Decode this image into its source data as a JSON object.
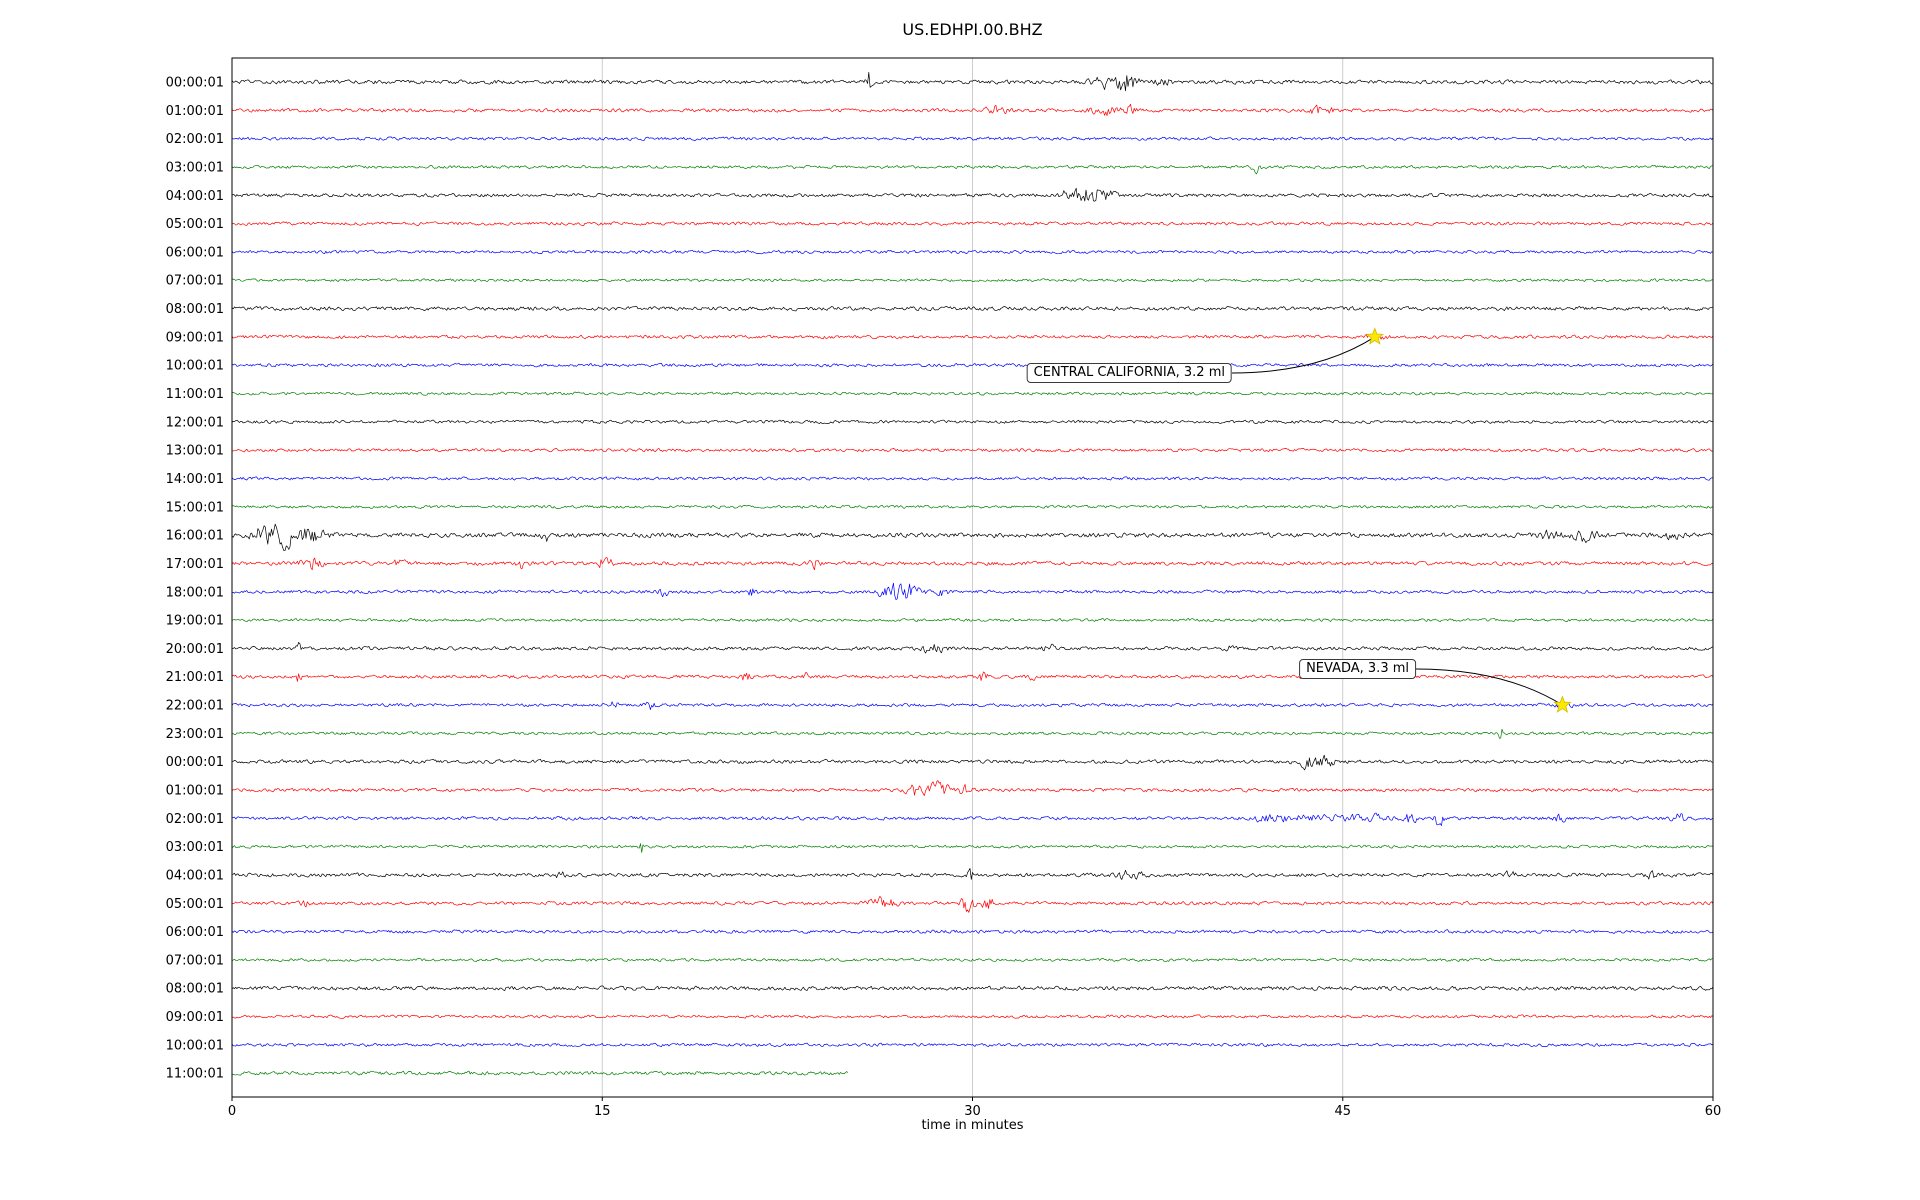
{
  "chart_data": {
    "type": "line",
    "variant": "seismogram-dayplot",
    "title": "US.EDHPI.00.BHZ",
    "xlabel": "time in minutes",
    "x_ticks": [
      0,
      15,
      30,
      45,
      60
    ],
    "x_tick_labels": [
      "0",
      "15",
      "30",
      "45",
      "60"
    ],
    "x_range": [
      0,
      60
    ],
    "grid": true,
    "trace_color_cycle": [
      "#000000",
      "#ff0000",
      "#0000ff",
      "#008000"
    ],
    "rows": [
      {
        "label": "00:00:01",
        "color": "#000000",
        "base": 2.5,
        "bursts": [
          {
            "m": 25.8,
            "w": 0.08,
            "a": 16
          },
          {
            "m": 35.6,
            "w": 0.5,
            "a": 8
          },
          {
            "m": 36.3,
            "w": 0.25,
            "a": 9
          },
          {
            "m": 37.7,
            "w": 0.2,
            "a": 6
          }
        ]
      },
      {
        "label": "01:00:01",
        "color": "#ff0000",
        "base": 2.2,
        "bursts": [
          {
            "m": 30.9,
            "w": 0.3,
            "a": 6
          },
          {
            "m": 35.4,
            "w": 0.4,
            "a": 6
          },
          {
            "m": 36.4,
            "w": 0.12,
            "a": 10
          },
          {
            "m": 43.9,
            "w": 0.15,
            "a": 7
          },
          {
            "m": 44.5,
            "w": 0.1,
            "a": 4
          }
        ]
      },
      {
        "label": "02:00:01",
        "color": "#0000ff",
        "base": 2.1,
        "bursts": []
      },
      {
        "label": "03:00:01",
        "color": "#008000",
        "base": 2.0,
        "bursts": [
          {
            "m": 41.5,
            "w": 0.1,
            "a": 11
          }
        ]
      },
      {
        "label": "04:00:01",
        "color": "#000000",
        "base": 2.3,
        "bursts": [
          {
            "m": 34.0,
            "w": 0.25,
            "a": 10
          },
          {
            "m": 34.8,
            "w": 0.3,
            "a": 14
          },
          {
            "m": 35.6,
            "w": 0.2,
            "a": 6
          }
        ]
      },
      {
        "label": "05:00:01",
        "color": "#ff0000",
        "base": 2.1,
        "bursts": []
      },
      {
        "label": "06:00:01",
        "color": "#0000ff",
        "base": 2.0,
        "bursts": []
      },
      {
        "label": "07:00:01",
        "color": "#008000",
        "base": 1.8,
        "bursts": []
      },
      {
        "label": "08:00:01",
        "color": "#000000",
        "base": 2.6,
        "bursts": []
      },
      {
        "label": "09:00:01",
        "color": "#ff0000",
        "base": 2.2,
        "bursts": [
          {
            "m": 46.3,
            "w": 0.3,
            "a": 3
          }
        ]
      },
      {
        "label": "10:00:01",
        "color": "#0000ff",
        "base": 2.1,
        "bursts": []
      },
      {
        "label": "11:00:01",
        "color": "#008000",
        "base": 1.9,
        "bursts": []
      },
      {
        "label": "12:00:01",
        "color": "#000000",
        "base": 2.0,
        "bursts": []
      },
      {
        "label": "13:00:01",
        "color": "#ff0000",
        "base": 2.0,
        "bursts": []
      },
      {
        "label": "14:00:01",
        "color": "#0000ff",
        "base": 2.0,
        "bursts": []
      },
      {
        "label": "15:00:01",
        "color": "#008000",
        "base": 1.9,
        "bursts": []
      },
      {
        "label": "16:00:01",
        "color": "#000000",
        "base": 3.0,
        "bursts": [
          {
            "m": 1.2,
            "w": 0.3,
            "a": 8
          },
          {
            "m": 2.1,
            "w": 0.5,
            "a": 14
          },
          {
            "m": 3.3,
            "w": 0.4,
            "a": 7
          },
          {
            "m": 12.7,
            "w": 0.08,
            "a": 8
          },
          {
            "m": 53.4,
            "w": 0.3,
            "a": 6
          },
          {
            "m": 54.8,
            "w": 0.35,
            "a": 7
          },
          {
            "m": 58.3,
            "w": 0.25,
            "a": 6
          }
        ]
      },
      {
        "label": "17:00:01",
        "color": "#ff0000",
        "base": 2.5,
        "bursts": [
          {
            "m": 3.2,
            "w": 0.3,
            "a": 7
          },
          {
            "m": 6.8,
            "w": 0.15,
            "a": 5
          },
          {
            "m": 11.7,
            "w": 0.15,
            "a": 6
          },
          {
            "m": 15.1,
            "w": 0.2,
            "a": 8
          },
          {
            "m": 23.6,
            "w": 0.15,
            "a": 6
          }
        ]
      },
      {
        "label": "18:00:01",
        "color": "#0000ff",
        "base": 2.2,
        "bursts": [
          {
            "m": 17.5,
            "w": 0.15,
            "a": 5
          },
          {
            "m": 21.1,
            "w": 0.12,
            "a": 6
          },
          {
            "m": 26.6,
            "w": 0.3,
            "a": 9
          },
          {
            "m": 27.4,
            "w": 0.35,
            "a": 10
          },
          {
            "m": 28.8,
            "w": 0.15,
            "a": 5
          }
        ]
      },
      {
        "label": "19:00:01",
        "color": "#008000",
        "base": 1.9,
        "bursts": []
      },
      {
        "label": "20:00:01",
        "color": "#000000",
        "base": 2.3,
        "bursts": [
          {
            "m": 2.7,
            "w": 0.06,
            "a": 10
          },
          {
            "m": 28.4,
            "w": 0.3,
            "a": 7
          },
          {
            "m": 33.1,
            "w": 0.15,
            "a": 5
          },
          {
            "m": 40.5,
            "w": 0.12,
            "a": 5
          }
        ]
      },
      {
        "label": "21:00:01",
        "color": "#ff0000",
        "base": 2.2,
        "bursts": [
          {
            "m": 2.7,
            "w": 0.05,
            "a": 17
          },
          {
            "m": 20.8,
            "w": 0.15,
            "a": 5
          },
          {
            "m": 23.3,
            "w": 0.12,
            "a": 4
          },
          {
            "m": 30.4,
            "w": 0.15,
            "a": 6
          },
          {
            "m": 32.4,
            "w": 0.12,
            "a": 5
          }
        ]
      },
      {
        "label": "22:00:01",
        "color": "#0000ff",
        "base": 2.1,
        "bursts": [
          {
            "m": 15.5,
            "w": 0.1,
            "a": 6
          },
          {
            "m": 16.9,
            "w": 0.12,
            "a": 7
          },
          {
            "m": 53.9,
            "w": 0.25,
            "a": 3
          }
        ]
      },
      {
        "label": "23:00:01",
        "color": "#008000",
        "base": 1.9,
        "bursts": [
          {
            "m": 51.4,
            "w": 0.06,
            "a": 10
          }
        ]
      },
      {
        "label": "00:00:01",
        "color": "#000000",
        "base": 2.4,
        "bursts": [
          {
            "m": 43.5,
            "w": 0.3,
            "a": 7
          },
          {
            "m": 44.3,
            "w": 0.25,
            "a": 8
          }
        ]
      },
      {
        "label": "01:00:01",
        "color": "#ff0000",
        "base": 2.2,
        "bursts": [
          {
            "m": 27.7,
            "w": 0.25,
            "a": 8
          },
          {
            "m": 28.6,
            "w": 0.3,
            "a": 10
          },
          {
            "m": 29.6,
            "w": 0.2,
            "a": 7
          }
        ]
      },
      {
        "label": "02:00:01",
        "color": "#0000ff",
        "base": 2.2,
        "bursts": [
          {
            "m": 42.0,
            "w": 0.6,
            "a": 4
          },
          {
            "m": 44.0,
            "w": 0.8,
            "a": 4
          },
          {
            "m": 46.0,
            "w": 0.5,
            "a": 5
          },
          {
            "m": 47.7,
            "w": 0.2,
            "a": 7
          },
          {
            "m": 48.9,
            "w": 0.1,
            "a": 14
          },
          {
            "m": 53.8,
            "w": 0.15,
            "a": 6
          },
          {
            "m": 58.6,
            "w": 0.2,
            "a": 6
          }
        ]
      },
      {
        "label": "03:00:01",
        "color": "#008000",
        "base": 1.9,
        "bursts": [
          {
            "m": 16.6,
            "w": 0.08,
            "a": 9
          }
        ]
      },
      {
        "label": "04:00:01",
        "color": "#000000",
        "base": 2.4,
        "bursts": [
          {
            "m": 13.3,
            "w": 0.1,
            "a": 6
          },
          {
            "m": 29.9,
            "w": 0.07,
            "a": 15
          },
          {
            "m": 36.3,
            "w": 0.4,
            "a": 5
          },
          {
            "m": 51.8,
            "w": 0.15,
            "a": 5
          },
          {
            "m": 57.5,
            "w": 0.15,
            "a": 5
          }
        ]
      },
      {
        "label": "05:00:01",
        "color": "#ff0000",
        "base": 2.2,
        "bursts": [
          {
            "m": 2.9,
            "w": 0.12,
            "a": 5
          },
          {
            "m": 26.3,
            "w": 0.4,
            "a": 7
          },
          {
            "m": 29.8,
            "w": 0.15,
            "a": 16
          },
          {
            "m": 30.6,
            "w": 0.2,
            "a": 7
          }
        ]
      },
      {
        "label": "06:00:01",
        "color": "#0000ff",
        "base": 2.1,
        "bursts": []
      },
      {
        "label": "07:00:01",
        "color": "#008000",
        "base": 1.9,
        "bursts": []
      },
      {
        "label": "08:00:01",
        "color": "#000000",
        "base": 2.6,
        "bursts": []
      },
      {
        "label": "09:00:01",
        "color": "#ff0000",
        "base": 1.9,
        "bursts": []
      },
      {
        "label": "10:00:01",
        "color": "#0000ff",
        "base": 2.0,
        "bursts": []
      },
      {
        "label": "11:00:01",
        "color": "#008000",
        "base": 2.4,
        "duration": 25,
        "bursts": []
      }
    ],
    "events": [
      {
        "label": "CENTRAL CALIFORNIA, 3.2 ml",
        "row": 9,
        "minute": 46.3,
        "box": {
          "x": 1232,
          "y": 373
        }
      },
      {
        "label": "NEVADA, 3.3 ml",
        "row": 22,
        "minute": 53.9,
        "box": {
          "x": 1416,
          "y": 669
        }
      }
    ],
    "event_marker": {
      "shape": "star",
      "color": "#ffe800"
    }
  }
}
